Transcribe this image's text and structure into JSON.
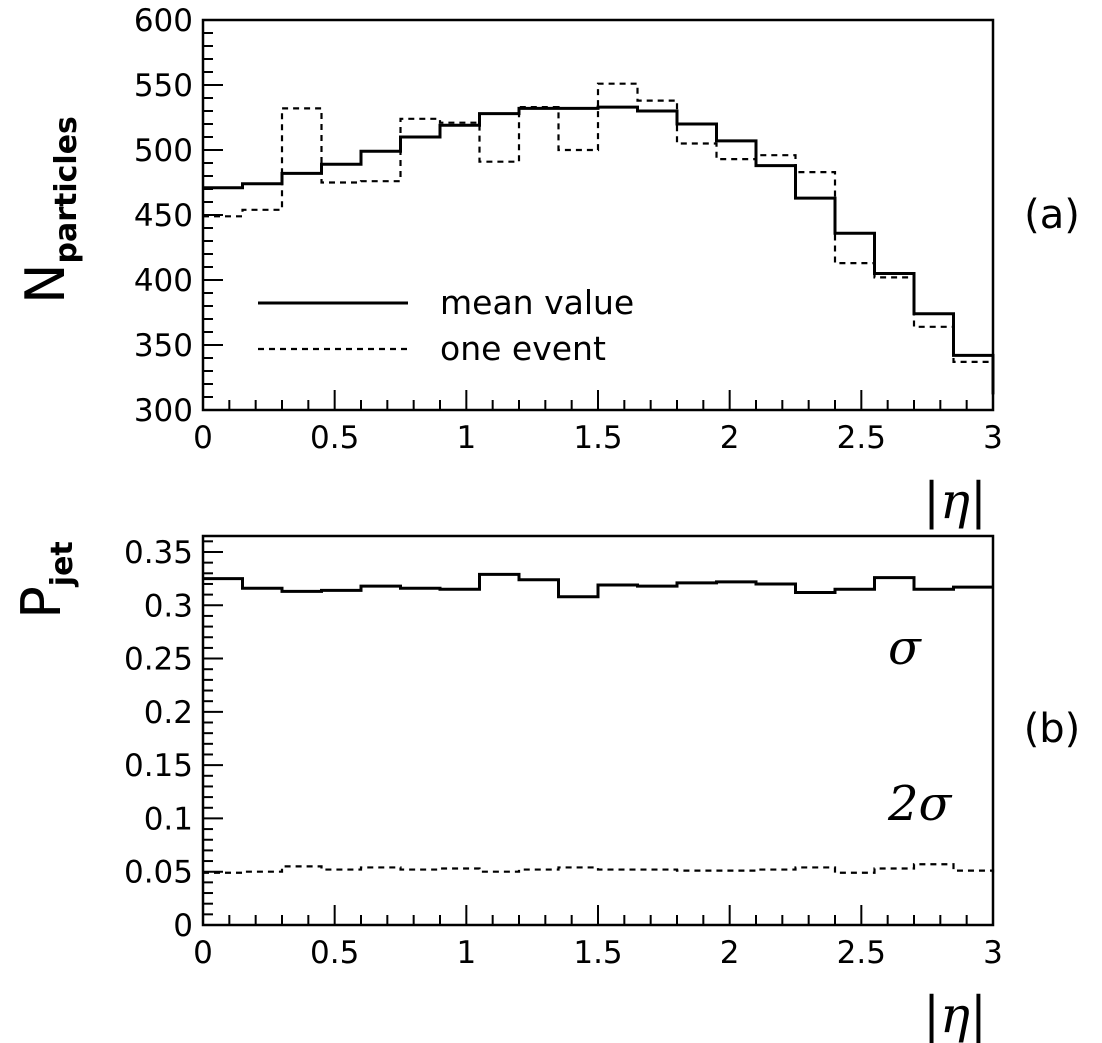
{
  "chart_data": [
    {
      "type": "line",
      "panel_label": "(a)",
      "ylabel": {
        "main": "N",
        "sub": "particles"
      },
      "xlabel": "|η|",
      "xlim": [
        0,
        3
      ],
      "ylim": [
        300,
        600
      ],
      "x_ticks": [
        0,
        0.5,
        1,
        1.5,
        2,
        2.5,
        3
      ],
      "x_tick_labels": [
        "0",
        "0.5",
        "1",
        "1.5",
        "2",
        "2.5",
        "3"
      ],
      "y_ticks": [
        300,
        350,
        400,
        450,
        500,
        550,
        600
      ],
      "y_tick_labels": [
        "300",
        "350",
        "400",
        "450",
        "500",
        "550",
        "600"
      ],
      "bin_edges": [
        0,
        0.15,
        0.3,
        0.45,
        0.6,
        0.75,
        0.9,
        1.05,
        1.2,
        1.35,
        1.5,
        1.65,
        1.8,
        1.95,
        2.1,
        2.25,
        2.4,
        2.55,
        2.7,
        2.85,
        3.0
      ],
      "series": [
        {
          "name": "mean value",
          "style": "solid",
          "values": [
            471,
            474,
            482,
            489,
            499,
            510,
            519,
            528,
            532,
            532,
            533,
            530,
            520,
            507,
            488,
            463,
            436,
            405,
            374,
            342,
            312
          ]
        },
        {
          "name": "one event",
          "style": "dashed",
          "values": [
            449,
            454,
            532,
            475,
            476,
            524,
            521,
            491,
            533,
            500,
            551,
            538,
            505,
            493,
            496,
            483,
            413,
            402,
            364,
            337,
            328
          ]
        }
      ],
      "legend_position": "lower-left"
    },
    {
      "type": "line",
      "panel_label": "(b)",
      "ylabel": {
        "main": "P",
        "sub": "jet"
      },
      "xlabel": "|η|",
      "xlim": [
        0,
        3
      ],
      "ylim": [
        0,
        0.365
      ],
      "x_ticks": [
        0,
        0.5,
        1,
        1.5,
        2,
        2.5,
        3
      ],
      "x_tick_labels": [
        "0",
        "0.5",
        "1",
        "1.5",
        "2",
        "2.5",
        "3"
      ],
      "y_ticks": [
        0,
        0.05,
        0.1,
        0.15,
        0.2,
        0.25,
        0.3,
        0.35
      ],
      "y_tick_labels": [
        "0",
        "0.05",
        "0.1",
        "0.15",
        "0.2",
        "0.25",
        "0.3",
        "0.35"
      ],
      "bin_edges": [
        0,
        0.15,
        0.3,
        0.45,
        0.6,
        0.75,
        0.9,
        1.05,
        1.2,
        1.35,
        1.5,
        1.65,
        1.8,
        1.95,
        2.1,
        2.25,
        2.4,
        2.55,
        2.7,
        2.85,
        3.0
      ],
      "series": [
        {
          "name": "σ",
          "style": "solid",
          "values": [
            0.325,
            0.316,
            0.313,
            0.314,
            0.318,
            0.316,
            0.315,
            0.329,
            0.324,
            0.308,
            0.319,
            0.318,
            0.321,
            0.322,
            0.32,
            0.312,
            0.315,
            0.326,
            0.315,
            0.317,
            0.317
          ]
        },
        {
          "name": "2σ",
          "style": "dashed",
          "values": [
            0.049,
            0.05,
            0.055,
            0.052,
            0.054,
            0.052,
            0.053,
            0.05,
            0.052,
            0.054,
            0.052,
            0.052,
            0.051,
            0.051,
            0.052,
            0.054,
            0.049,
            0.053,
            0.057,
            0.051,
            0.049
          ]
        }
      ],
      "annotations": [
        "σ",
        "2σ"
      ]
    }
  ]
}
